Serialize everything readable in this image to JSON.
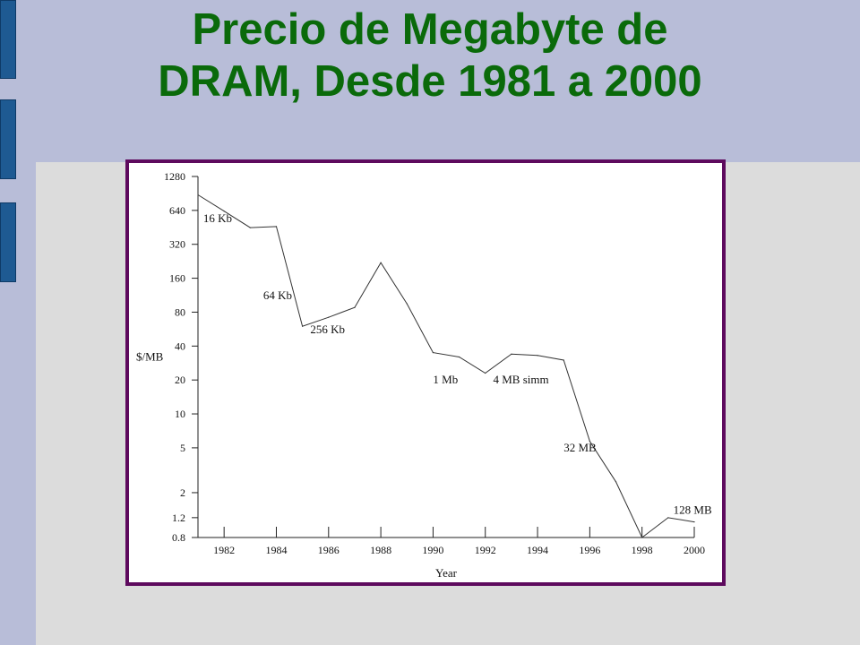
{
  "slide": {
    "title_line1": "Precio de Megabyte de",
    "title_line2": "DRAM, Desde 1981 a 2000",
    "title_color": "#0a6a0a",
    "frame_color": "#5e0a5e",
    "band_color": "#b8bdd8",
    "tab_color": "#1e5a92"
  },
  "chart_data": {
    "type": "line",
    "title": "",
    "xlabel": "Year",
    "ylabel": "$/MB",
    "y_scale": "log",
    "xlim": [
      1981,
      2000
    ],
    "ylim": [
      0.8,
      1280
    ],
    "x_ticks": [
      1982,
      1984,
      1986,
      1988,
      1990,
      1992,
      1994,
      1996,
      1998,
      2000
    ],
    "y_ticks": [
      0.8,
      1.2,
      2,
      5,
      10,
      20,
      40,
      80,
      160,
      320,
      640,
      1280
    ],
    "grid": false,
    "series": [
      {
        "x": [
          1981,
          1982,
          1983,
          1984,
          1985,
          1986,
          1987,
          1988,
          1989,
          1990,
          1991,
          1992,
          1993,
          1994,
          1995,
          1996,
          1997,
          1998,
          1999,
          2000
        ],
        "values": [
          880,
          630,
          450,
          460,
          60,
          72,
          88,
          220,
          95,
          35,
          32,
          23,
          34,
          33,
          30,
          5.7,
          2.5,
          0.8,
          1.2,
          1.1
        ]
      }
    ],
    "annotations": [
      {
        "text": "16 Kb",
        "x": 1981.2,
        "y": 540
      },
      {
        "text": "64 Kb",
        "x": 1983.5,
        "y": 112
      },
      {
        "text": "256 Kb",
        "x": 1985.3,
        "y": 56
      },
      {
        "text": "1 Mb",
        "x": 1990.0,
        "y": 20
      },
      {
        "text": "4 MB simm",
        "x": 1992.3,
        "y": 20
      },
      {
        "text": "32 MB",
        "x": 1995.0,
        "y": 5
      },
      {
        "text": "128 MB",
        "x": 1999.2,
        "y": 1.4
      }
    ]
  }
}
